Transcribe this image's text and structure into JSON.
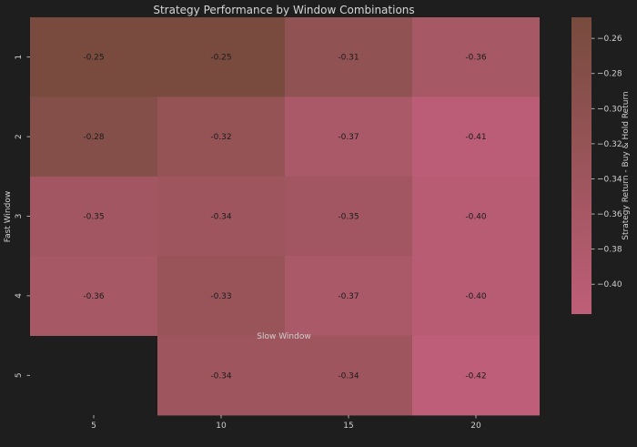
{
  "chart_data": {
    "type": "heatmap",
    "title": "Strategy Performance by Window Combinations",
    "xlabel": "Slow Window",
    "ylabel": "Fast Window",
    "x_categories": [
      "5",
      "10",
      "15",
      "20"
    ],
    "y_categories": [
      "1",
      "2",
      "3",
      "4",
      "5"
    ],
    "values": [
      [
        -0.25,
        -0.25,
        -0.31,
        -0.36
      ],
      [
        -0.28,
        -0.32,
        -0.37,
        -0.41
      ],
      [
        -0.35,
        -0.34,
        -0.35,
        -0.4
      ],
      [
        -0.36,
        -0.33,
        -0.37,
        -0.4
      ],
      [
        null,
        -0.34,
        -0.34,
        -0.42
      ]
    ],
    "cell_labels": [
      [
        "-0.25",
        "-0.25",
        "-0.31",
        "-0.36"
      ],
      [
        "-0.28",
        "-0.32",
        "-0.37",
        "-0.41"
      ],
      [
        "-0.35",
        "-0.34",
        "-0.35",
        "-0.40"
      ],
      [
        "-0.36",
        "-0.33",
        "-0.37",
        "-0.40"
      ],
      [
        "",
        "-0.34",
        "-0.34",
        "-0.42"
      ]
    ],
    "colorbar": {
      "label": "Strategy Return - Buy & Hold Return",
      "range": [
        -0.417,
        -0.248
      ],
      "ticks": [
        -0.26,
        -0.28,
        -0.3,
        -0.32,
        -0.34,
        -0.36,
        -0.38,
        -0.4
      ],
      "tick_labels": [
        "−0.26",
        "−0.28",
        "−0.30",
        "−0.32",
        "−0.34",
        "−0.36",
        "−0.38",
        "−0.40"
      ],
      "color_high": "#774b3d",
      "color_low": "#be5e78"
    },
    "background_color": "#1e1e1e",
    "grid": false
  }
}
